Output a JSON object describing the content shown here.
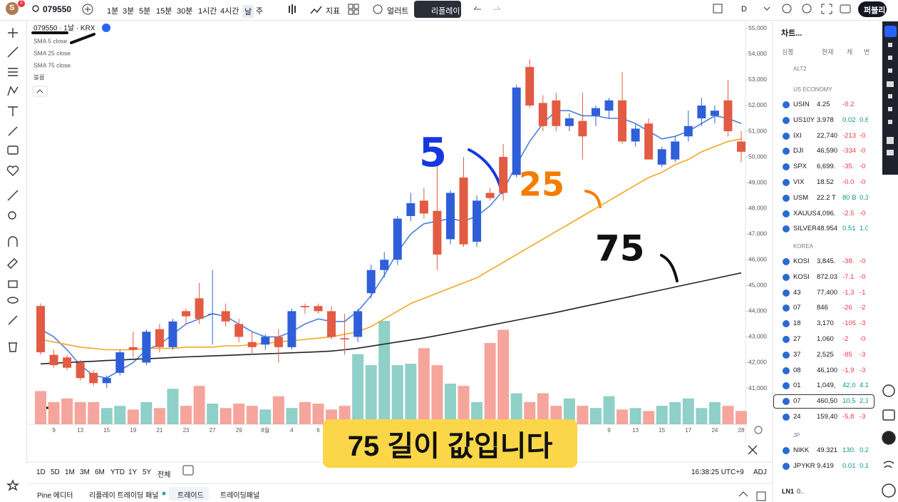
{
  "toolbar": {
    "avatar": "S",
    "badge": "2",
    "symbol": "079550",
    "intervals": [
      "1분",
      "3분",
      "5분",
      "15분",
      "30분",
      "1시간",
      "4시간",
      "날",
      "주"
    ],
    "indicators": "지표",
    "alerts": "얼러트",
    "replay": "리플레이",
    "period": "D",
    "publish": "퍼블리"
  },
  "chart_data": {
    "type": "candlestick",
    "title": "079550 · 1날 · KRX",
    "x": [
      null,
      "9",
      null,
      "13",
      null,
      "15",
      null,
      "19",
      null,
      "21",
      null,
      "23",
      null,
      "27",
      null,
      "29",
      null,
      "8월",
      null,
      "4",
      null,
      "6",
      null,
      null,
      null,
      null,
      null,
      null,
      null,
      null,
      null,
      null,
      null,
      null,
      null,
      null,
      null,
      null,
      null,
      null,
      null,
      null,
      null,
      "9",
      null,
      "13",
      null,
      "15",
      null,
      "17",
      null,
      "24",
      null,
      "28"
    ],
    "series": [
      {
        "name": "079550",
        "up_color": "#2f5fd8",
        "down_color": "#e25b43",
        "open": [
          44200,
          42300,
          42200,
          42000,
          41600,
          41200,
          41600,
          42600,
          42000,
          43300,
          42600,
          44000,
          44500,
          43900,
          44000,
          43500,
          42800,
          42700,
          43000,
          42600,
          44200,
          44200,
          44000,
          42950,
          43000,
          44700,
          45600,
          46000,
          47700,
          48300,
          47900,
          46800,
          49200,
          46700,
          48600,
          50000,
          49300,
          53500,
          52100,
          52200,
          51200,
          51400,
          51600,
          51800,
          52200,
          50600,
          51300,
          49700,
          49900,
          50800,
          51500,
          51600,
          52200,
          50600
        ],
        "high": [
          44300,
          42500,
          42300,
          42100,
          41700,
          41500,
          42500,
          43200,
          43300,
          43500,
          43700,
          44100,
          45100,
          45600,
          44300,
          43700,
          43200,
          43100,
          43300,
          44100,
          44300,
          44300,
          44200,
          43900,
          44100,
          45800,
          46300,
          47700,
          48600,
          48800,
          50000,
          48700,
          50000,
          48500,
          48800,
          50500,
          52800,
          53800,
          52400,
          52500,
          51700,
          52500,
          52000,
          52300,
          53300,
          51300,
          51500,
          50400,
          50800,
          51800,
          52300,
          52000,
          53000,
          51000
        ],
        "low": [
          42300,
          41800,
          41700,
          41300,
          41100,
          41000,
          41500,
          42200,
          41900,
          42400,
          42500,
          43500,
          43500,
          42700,
          43400,
          42800,
          42300,
          42500,
          42000,
          42500,
          43900,
          43900,
          42900,
          42300,
          42800,
          44500,
          45300,
          45800,
          47500,
          47600,
          45600,
          46600,
          46500,
          46500,
          48300,
          48300,
          49200,
          51900,
          51000,
          51000,
          51000,
          49900,
          51200,
          51500,
          50500,
          50400,
          49900,
          49600,
          49800,
          50600,
          51200,
          51300,
          50800,
          49800
        ],
        "close": [
          42400,
          41900,
          41800,
          41400,
          41200,
          41400,
          42400,
          42500,
          43200,
          42600,
          43600,
          43800,
          43700,
          43900,
          43600,
          43000,
          42600,
          43000,
          42600,
          44000,
          44150,
          44000,
          43000,
          42900,
          44000,
          45600,
          46000,
          47600,
          48200,
          47800,
          46200,
          48600,
          46600,
          48300,
          48400,
          48600,
          52700,
          52000,
          51200,
          51200,
          51500,
          50800,
          51900,
          52200,
          50600,
          51100,
          49900,
          50300,
          50600,
          51200,
          52000,
          51800,
          51000,
          50200
        ]
      }
    ],
    "overlays": [
      {
        "name": "SMA 5 close",
        "color": "#4a7fe0",
        "values": [
          43300,
          43000,
          42500,
          41900,
          41500,
          41400,
          41700,
          42000,
          42500,
          42700,
          43100,
          43500,
          43700,
          43900,
          43800,
          43500,
          43200,
          43000,
          43000,
          43200,
          43500,
          43700,
          43600,
          43600,
          44000,
          44600,
          45400,
          46300,
          47000,
          47400,
          47500,
          47600,
          47500,
          47700,
          48100,
          48700,
          49700,
          50600,
          51300,
          51800,
          51800,
          51600,
          51600,
          51500,
          51500,
          51300,
          51000,
          50700,
          50800,
          51000,
          51300,
          51600,
          51500,
          51300
        ]
      },
      {
        "name": "SMA 25 close",
        "color": "#f5a623",
        "values": [
          42900,
          42800,
          42700,
          42600,
          42550,
          42500,
          42500,
          42500,
          42550,
          42550,
          42550,
          42600,
          42600,
          42600,
          42650,
          42650,
          42700,
          42750,
          42800,
          42850,
          42900,
          42950,
          43000,
          43100,
          43200,
          43400,
          43700,
          44000,
          44300,
          44500,
          44700,
          44900,
          45100,
          45300,
          45600,
          45900,
          46200,
          46500,
          46800,
          47100,
          47400,
          47700,
          48000,
          48300,
          48600,
          48900,
          49200,
          49400,
          49700,
          49900,
          50200,
          50400,
          50600,
          50700
        ]
      },
      {
        "name": "SMA 75 close",
        "color": "#222222",
        "values": [
          41950,
          41980,
          42000,
          42030,
          42050,
          42080,
          42100,
          42130,
          42150,
          42170,
          42200,
          42220,
          42240,
          42260,
          42280,
          42300,
          42320,
          42340,
          42360,
          42380,
          42400,
          42420,
          42450,
          42500,
          42560,
          42640,
          42720,
          42800,
          42880,
          42960,
          43050,
          43150,
          43250,
          43350,
          43450,
          43550,
          43650,
          43750,
          43850,
          43950,
          44060,
          44170,
          44280,
          44390,
          44500,
          44610,
          44720,
          44830,
          44940,
          45050,
          45160,
          45270,
          45380,
          45490
        ]
      }
    ],
    "volume": {
      "name": "볼륨",
      "up_color": "#8fd0c8",
      "down_color": "#f5a59c",
      "values": [
        45,
        30,
        35,
        30,
        30,
        22,
        25,
        20,
        30,
        22,
        48,
        25,
        52,
        28,
        22,
        28,
        25,
        20,
        38,
        22,
        30,
        28,
        20,
        25,
        95,
        80,
        140,
        80,
        82,
        103,
        80,
        55,
        52,
        30,
        110,
        128,
        42,
        30,
        42,
        25,
        35,
        25,
        22,
        38,
        20,
        22,
        18,
        25,
        30,
        35,
        22,
        30,
        25,
        18
      ]
    },
    "ylim": [
      39600,
      55300
    ],
    "yticks": [
      {
        "value": 41000,
        "label": "41,000"
      },
      {
        "value": 42000,
        "label": "42,000"
      },
      {
        "value": 43000,
        "label": "43,000"
      },
      {
        "value": 44000,
        "label": "44,000"
      },
      {
        "value": 45000,
        "label": "45,000"
      },
      {
        "value": 46000,
        "label": "46,000"
      },
      {
        "value": 47000,
        "label": "47,000"
      },
      {
        "value": 48000,
        "label": "48,000"
      },
      {
        "value": 49000,
        "label": "49,000"
      },
      {
        "value": 50000,
        "label": "50,000"
      },
      {
        "value": 51000,
        "label": "51,000"
      },
      {
        "value": 52000,
        "label": "52,000"
      },
      {
        "value": 53000,
        "label": "53,000"
      },
      {
        "value": 54000,
        "label": "54,000"
      },
      {
        "value": 55000,
        "label": "55,000"
      }
    ],
    "grid": false,
    "annotations": [
      {
        "text": "5",
        "color": "#1637e0"
      },
      {
        "text": "25",
        "color": "#f57c00"
      },
      {
        "text": "75",
        "color": "#111111"
      }
    ]
  },
  "caption": "75 길이 값입니다",
  "range_bar": {
    "ranges": [
      "1D",
      "5D",
      "1M",
      "3M",
      "6M",
      "YTD",
      "1Y",
      "5Y",
      "전체"
    ],
    "clock": "16:38:25 UTC+9",
    "adj": "ADJ"
  },
  "tabs": [
    "Pine 에디터",
    "리플레이 트레이딩 패널",
    "트레이드",
    "트레이딩패널"
  ],
  "watchlist": {
    "title": "차트...",
    "columns": [
      "심볼",
      "현재",
      "체",
      "변"
    ],
    "sections": [
      {
        "name": "ALT2",
        "rows": []
      },
      {
        "name": "US ECONOMY",
        "rows": [
          [
            "USIN",
            "4.25",
            "-0.2",
            ""
          ],
          [
            "US10Y",
            "3.978",
            "0.02",
            "0.6"
          ],
          [
            "IXI",
            "22,740",
            "-213",
            "-0"
          ],
          [
            "DJI",
            "46,590",
            "-334",
            "-0"
          ],
          [
            "SPX",
            "6,699.",
            "-35.",
            "-0"
          ],
          [
            "VIX",
            "18.52",
            "-0.0",
            "-0"
          ],
          [
            "USM",
            "22.2 T",
            "80 B",
            "0.3"
          ],
          [
            "XAUUS",
            "4,096.",
            "-2.5",
            "-0"
          ],
          [
            "SILVER",
            "48.954",
            "0.51",
            "1.0"
          ]
        ]
      },
      {
        "name": "KOREA",
        "rows": [
          [
            "KOSI",
            "3,845.",
            "-38.",
            "-0"
          ],
          [
            "KOSI",
            "872.03",
            "-7.1",
            "-0"
          ],
          [
            "43",
            "77,400",
            "-1,3",
            "-1"
          ],
          [
            "07",
            "846",
            "-26",
            "-2"
          ],
          [
            "18",
            "3,170",
            "-105",
            "-3"
          ],
          [
            "27",
            "1,060",
            "-2",
            "-0"
          ],
          [
            "37",
            "2,525",
            "-85",
            "-3"
          ],
          [
            "08",
            "46,100",
            "-1,9",
            "-3"
          ],
          [
            "01",
            "1,049,",
            "42,0",
            "4.1"
          ],
          [
            "07",
            "460,50",
            "10,5",
            "2.3"
          ],
          [
            "24",
            "159,40",
            "-5,8",
            "-3"
          ]
        ]
      },
      {
        "name": "JP",
        "rows": [
          [
            "NIKK",
            "49.321",
            "130.",
            "0.2"
          ],
          [
            "JPYKR",
            "9.419",
            "0.01",
            "0.1"
          ]
        ]
      }
    ],
    "footer": "LN1",
    "footer_value": "0.."
  }
}
